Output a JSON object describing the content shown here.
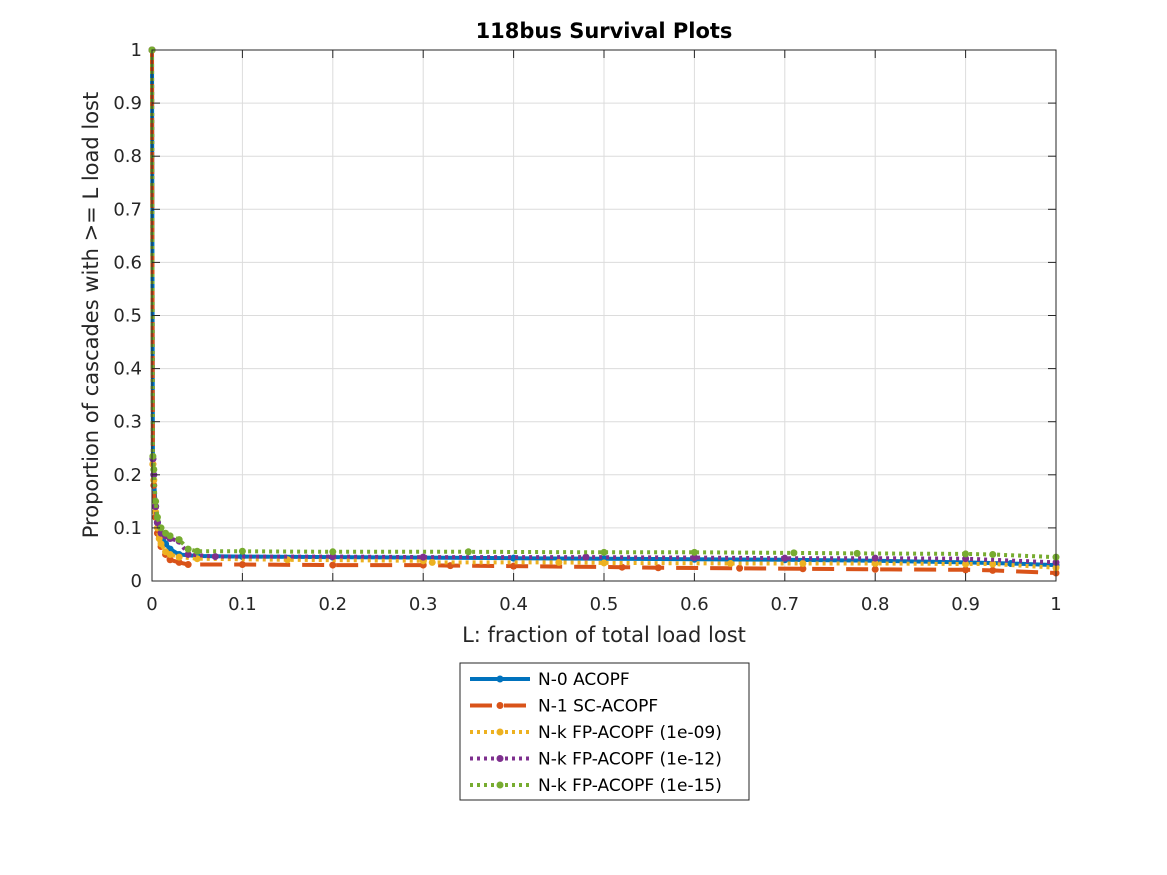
{
  "chart_data": {
    "type": "line",
    "title": "118bus Survival Plots",
    "xlabel": "L: fraction of total load lost",
    "ylabel": "Proportion of cascades with >= L load lost",
    "xlim": [
      0,
      1
    ],
    "ylim": [
      0,
      1
    ],
    "xticks": [
      0,
      0.1,
      0.2,
      0.3,
      0.4,
      0.5,
      0.6,
      0.7,
      0.8,
      0.9,
      1
    ],
    "yticks": [
      0,
      0.1,
      0.2,
      0.3,
      0.4,
      0.5,
      0.6,
      0.7,
      0.8,
      0.9,
      1
    ],
    "xtick_labels": [
      "0",
      "0.1",
      "0.2",
      "0.3",
      "0.4",
      "0.5",
      "0.6",
      "0.7",
      "0.8",
      "0.9",
      "1"
    ],
    "ytick_labels": [
      "0",
      "0.1",
      "0.2",
      "0.3",
      "0.4",
      "0.5",
      "0.6",
      "0.7",
      "0.8",
      "0.9",
      "1"
    ],
    "grid": true,
    "legend_position": "below plot",
    "series": [
      {
        "name": "N-0 ACOPF",
        "color": "#0072BD",
        "style": "solid",
        "marker": "dot",
        "points": [
          [
            0,
            1
          ],
          [
            0.001,
            0.23
          ],
          [
            0.002,
            0.2
          ],
          [
            0.004,
            0.14
          ],
          [
            0.006,
            0.11
          ],
          [
            0.01,
            0.09
          ],
          [
            0.015,
            0.07
          ],
          [
            0.02,
            0.06
          ],
          [
            0.03,
            0.05
          ],
          [
            0.05,
            0.047
          ],
          [
            0.1,
            0.046
          ],
          [
            0.2,
            0.045
          ],
          [
            0.3,
            0.044
          ],
          [
            0.4,
            0.043
          ],
          [
            0.5,
            0.042
          ],
          [
            0.6,
            0.041
          ],
          [
            0.7,
            0.04
          ],
          [
            0.8,
            0.038
          ],
          [
            0.9,
            0.035
          ],
          [
            0.95,
            0.033
          ],
          [
            1,
            0.03
          ]
        ]
      },
      {
        "name": "N-1 SC-ACOPF",
        "color": "#D95319",
        "style": "dashed",
        "marker": "dot",
        "points": [
          [
            0,
            1
          ],
          [
            0.001,
            0.22
          ],
          [
            0.002,
            0.18
          ],
          [
            0.004,
            0.12
          ],
          [
            0.006,
            0.09
          ],
          [
            0.01,
            0.065
          ],
          [
            0.015,
            0.05
          ],
          [
            0.02,
            0.04
          ],
          [
            0.03,
            0.035
          ],
          [
            0.04,
            0.031
          ],
          [
            0.1,
            0.031
          ],
          [
            0.2,
            0.03
          ],
          [
            0.3,
            0.03
          ],
          [
            0.33,
            0.029
          ],
          [
            0.4,
            0.028
          ],
          [
            0.52,
            0.026
          ],
          [
            0.56,
            0.025
          ],
          [
            0.65,
            0.024
          ],
          [
            0.72,
            0.023
          ],
          [
            0.8,
            0.022
          ],
          [
            0.9,
            0.021
          ],
          [
            0.93,
            0.02
          ],
          [
            1,
            0.015
          ]
        ]
      },
      {
        "name": "N-k FP-ACOPF (1e-09)",
        "color": "#EDB120",
        "style": "dotted",
        "marker": "dot",
        "points": [
          [
            0,
            1
          ],
          [
            0.001,
            0.22
          ],
          [
            0.002,
            0.19
          ],
          [
            0.004,
            0.13
          ],
          [
            0.006,
            0.1
          ],
          [
            0.008,
            0.08
          ],
          [
            0.01,
            0.07
          ],
          [
            0.015,
            0.055
          ],
          [
            0.02,
            0.05
          ],
          [
            0.03,
            0.045
          ],
          [
            0.05,
            0.042
          ],
          [
            0.15,
            0.04
          ],
          [
            0.3,
            0.038
          ],
          [
            0.31,
            0.035
          ],
          [
            0.45,
            0.035
          ],
          [
            0.5,
            0.034
          ],
          [
            0.64,
            0.033
          ],
          [
            0.72,
            0.033
          ],
          [
            0.8,
            0.033
          ],
          [
            0.9,
            0.032
          ],
          [
            0.93,
            0.032
          ],
          [
            1,
            0.025
          ]
        ]
      },
      {
        "name": "N-k FP-ACOPF (1e-12)",
        "color": "#7E2F8E",
        "style": "dotted",
        "marker": "dot",
        "points": [
          [
            0,
            1
          ],
          [
            0.001,
            0.23
          ],
          [
            0.002,
            0.2
          ],
          [
            0.004,
            0.14
          ],
          [
            0.006,
            0.11
          ],
          [
            0.01,
            0.09
          ],
          [
            0.015,
            0.085
          ],
          [
            0.02,
            0.08
          ],
          [
            0.03,
            0.075
          ],
          [
            0.04,
            0.05
          ],
          [
            0.07,
            0.046
          ],
          [
            0.2,
            0.046
          ],
          [
            0.3,
            0.045
          ],
          [
            0.48,
            0.045
          ],
          [
            0.6,
            0.044
          ],
          [
            0.7,
            0.043
          ],
          [
            0.8,
            0.043
          ],
          [
            0.9,
            0.042
          ],
          [
            1,
            0.035
          ]
        ]
      },
      {
        "name": "N-k FP-ACOPF (1e-15)",
        "color": "#77AC30",
        "style": "dotted",
        "marker": "dot",
        "points": [
          [
            0,
            1
          ],
          [
            0.001,
            0.235
          ],
          [
            0.002,
            0.21
          ],
          [
            0.004,
            0.15
          ],
          [
            0.006,
            0.12
          ],
          [
            0.01,
            0.1
          ],
          [
            0.015,
            0.09
          ],
          [
            0.02,
            0.085
          ],
          [
            0.03,
            0.078
          ],
          [
            0.04,
            0.06
          ],
          [
            0.05,
            0.056
          ],
          [
            0.1,
            0.056
          ],
          [
            0.2,
            0.055
          ],
          [
            0.35,
            0.055
          ],
          [
            0.5,
            0.054
          ],
          [
            0.6,
            0.054
          ],
          [
            0.71,
            0.053
          ],
          [
            0.78,
            0.052
          ],
          [
            0.9,
            0.051
          ],
          [
            0.93,
            0.05
          ],
          [
            1,
            0.045
          ]
        ]
      }
    ]
  }
}
